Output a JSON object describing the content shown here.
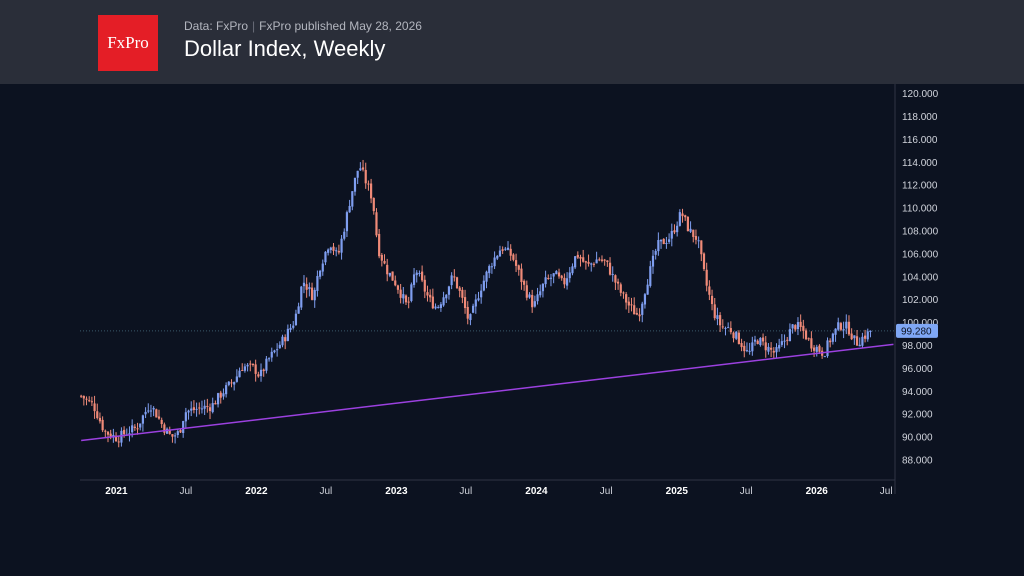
{
  "header": {
    "logo_text": "FxPro",
    "data_source": "Data: FxPro",
    "published": "FxPro published May 28, 2026",
    "title": "Dollar Index, Weekly"
  },
  "colors": {
    "up": "#7f9ef0",
    "down": "#f08a78",
    "trendline": "#9c41e0",
    "price_badge": "#7fa7f5",
    "background": "#0c1220",
    "header": "#2a2e39"
  },
  "chart_data": {
    "type": "candlestick",
    "title": "Dollar Index, Weekly",
    "frequency": "weekly",
    "y_ticks": [
      "88.000",
      "90.000",
      "92.000",
      "94.000",
      "96.000",
      "98.000",
      "100.000",
      "102.000",
      "104.000",
      "106.000",
      "108.000",
      "110.000",
      "112.000",
      "114.000",
      "116.000",
      "118.000",
      "120.000"
    ],
    "ylim": [
      88,
      120
    ],
    "x_ticks": [
      {
        "label": "2021",
        "date": "2021-01-01",
        "year": true
      },
      {
        "label": "Jul",
        "date": "2021-07-01",
        "year": false
      },
      {
        "label": "2022",
        "date": "2022-01-01",
        "year": true
      },
      {
        "label": "Jul",
        "date": "2022-07-01",
        "year": false
      },
      {
        "label": "2023",
        "date": "2023-01-01",
        "year": true
      },
      {
        "label": "Jul",
        "date": "2023-07-01",
        "year": false
      },
      {
        "label": "2024",
        "date": "2024-01-01",
        "year": true
      },
      {
        "label": "Jul",
        "date": "2024-07-01",
        "year": false
      },
      {
        "label": "2025",
        "date": "2025-01-01",
        "year": true
      },
      {
        "label": "Jul",
        "date": "2025-07-01",
        "year": false
      },
      {
        "label": "2026",
        "date": "2026-01-01",
        "year": true
      },
      {
        "label": "Jul",
        "date": "2026-07-01",
        "year": false
      }
    ],
    "xlim": [
      "2020-09-28",
      "2026-07-24"
    ],
    "last_price": 99.28,
    "last_price_label": "99.280",
    "trendline": {
      "from": {
        "date": "2020-10-01",
        "value": 89.7
      },
      "to": {
        "date": "2026-07-20",
        "value": 98.1
      }
    },
    "close_path": [
      [
        "2020-10-01",
        93.6
      ],
      [
        "2020-11-02",
        92.8
      ],
      [
        "2020-12-01",
        90.5
      ],
      [
        "2021-01-04",
        89.9
      ],
      [
        "2021-01-25",
        90.4
      ],
      [
        "2021-02-22",
        90.8
      ],
      [
        "2021-03-29",
        92.9
      ],
      [
        "2021-04-12",
        92.2
      ],
      [
        "2021-05-03",
        90.9
      ],
      [
        "2021-05-24",
        90.0
      ],
      [
        "2021-06-14",
        90.4
      ],
      [
        "2021-06-28",
        92.2
      ],
      [
        "2021-08-02",
        92.5
      ],
      [
        "2021-09-06",
        92.7
      ],
      [
        "2021-10-04",
        93.9
      ],
      [
        "2021-11-08",
        95.1
      ],
      [
        "2021-11-22",
        96.2
      ],
      [
        "2021-12-27",
        96.0
      ],
      [
        "2022-01-10",
        95.3
      ],
      [
        "2022-01-31",
        96.7
      ],
      [
        "2022-03-14",
        98.6
      ],
      [
        "2022-04-11",
        100.2
      ],
      [
        "2022-05-02",
        103.7
      ],
      [
        "2022-05-30",
        102.2
      ],
      [
        "2022-06-13",
        104.7
      ],
      [
        "2022-07-11",
        107.1
      ],
      [
        "2022-08-01",
        105.7
      ],
      [
        "2022-08-22",
        108.9
      ],
      [
        "2022-09-05",
        111.2
      ],
      [
        "2022-09-26",
        113.8
      ],
      [
        "2022-10-17",
        112.0
      ],
      [
        "2022-10-31",
        110.8
      ],
      [
        "2022-11-14",
        106.5
      ],
      [
        "2022-12-05",
        104.7
      ],
      [
        "2023-01-02",
        103.3
      ],
      [
        "2023-01-30",
        101.3
      ],
      [
        "2023-02-20",
        104.7
      ],
      [
        "2023-03-27",
        102.0
      ],
      [
        "2023-04-17",
        101.3
      ],
      [
        "2023-05-08",
        102.6
      ],
      [
        "2023-05-29",
        104.1
      ],
      [
        "2023-06-19",
        102.3
      ],
      [
        "2023-07-10",
        100.0
      ],
      [
        "2023-08-07",
        102.9
      ],
      [
        "2023-09-04",
        105.1
      ],
      [
        "2023-10-02",
        106.6
      ],
      [
        "2023-10-30",
        105.8
      ],
      [
        "2023-12-04",
        102.8
      ],
      [
        "2023-12-25",
        101.4
      ],
      [
        "2024-01-22",
        103.5
      ],
      [
        "2024-02-19",
        104.2
      ],
      [
        "2024-03-11",
        103.3
      ],
      [
        "2024-04-15",
        106.0
      ],
      [
        "2024-05-13",
        104.9
      ],
      [
        "2024-06-10",
        105.6
      ],
      [
        "2024-07-01",
        105.2
      ],
      [
        "2024-08-05",
        102.8
      ],
      [
        "2024-09-02",
        101.3
      ],
      [
        "2024-09-23",
        100.6
      ],
      [
        "2024-10-14",
        103.4
      ],
      [
        "2024-11-11",
        106.7
      ],
      [
        "2024-12-16",
        107.5
      ],
      [
        "2025-01-13",
        109.6
      ],
      [
        "2025-02-03",
        108.0
      ],
      [
        "2025-02-24",
        107.3
      ],
      [
        "2025-03-17",
        103.6
      ],
      [
        "2025-04-07",
        100.9
      ],
      [
        "2025-04-28",
        99.6
      ],
      [
        "2025-05-19",
        99.5
      ],
      [
        "2025-06-16",
        98.3
      ],
      [
        "2025-07-07",
        97.2
      ],
      [
        "2025-07-28",
        98.6
      ],
      [
        "2025-08-25",
        97.8
      ],
      [
        "2025-09-15",
        97.3
      ],
      [
        "2025-10-06",
        98.3
      ],
      [
        "2025-11-03",
        99.8
      ],
      [
        "2025-11-24",
        99.4
      ],
      [
        "2025-12-15",
        98.2
      ],
      [
        "2026-01-05",
        97.7
      ],
      [
        "2026-01-19",
        97.3
      ],
      [
        "2026-02-09",
        98.8
      ],
      [
        "2026-03-02",
        99.8
      ],
      [
        "2026-03-23",
        99.6
      ],
      [
        "2026-04-13",
        98.2
      ],
      [
        "2026-05-04",
        98.8
      ],
      [
        "2026-05-25",
        99.28
      ]
    ]
  }
}
